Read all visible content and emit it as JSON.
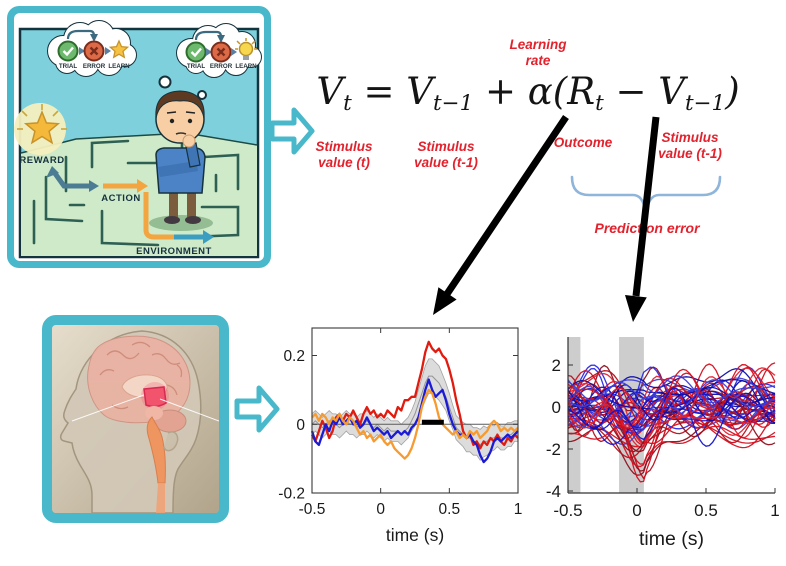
{
  "colors": {
    "background": "#ffffff",
    "cyan": "#49b8cb",
    "annotation_red": "#e2232e",
    "equation_ink": "#141414",
    "brace_blue": "#8fb5da",
    "arrow_black": "#000000"
  },
  "maze_panel": {
    "thought_labels": [
      "TRIAL",
      "ERROR",
      "LEARN"
    ],
    "reward_label": "REWARD",
    "action_label": "ACTION",
    "environment_label": "ENVIRONMENT"
  },
  "equation": {
    "plain": "Vt = Vt−1 + α(Rt − Vt−1)",
    "tokens": [
      {
        "t": "V"
      },
      {
        "t": "t",
        "sub": true
      },
      {
        "t": " = "
      },
      {
        "t": "V"
      },
      {
        "t": "t−1",
        "sub": true
      },
      {
        "t": " + "
      },
      {
        "t": "α"
      },
      {
        "t": "("
      },
      {
        "t": "R"
      },
      {
        "t": "t",
        "sub": true
      },
      {
        "t": " − "
      },
      {
        "t": "V"
      },
      {
        "t": "t−1",
        "sub": true
      },
      {
        "t": ")"
      }
    ]
  },
  "annotations": {
    "learning_rate": "Learning\nrate",
    "stimulus_value_t": "Stimulus\nvalue (t)",
    "stimulus_value_t1": "Stimulus\nvalue (t-1)",
    "outcome": "Outcome",
    "stimulus_value_t1_right": "Stimulus\nvalue (t-1)",
    "prediction_error": "Prediction error"
  },
  "chart_data": [
    {
      "id": "erp",
      "type": "line",
      "xlabel": "time (s)",
      "xticks": [
        -0.5,
        0,
        0.5,
        1
      ],
      "xtick_labels": [
        "-0.5",
        "0",
        "0.5",
        "1"
      ],
      "yticks": [
        0.2,
        0,
        -0.2
      ],
      "ytick_labels": [
        "0.2",
        "0",
        "-0.2"
      ],
      "xlim": [
        -0.5,
        1
      ],
      "ylim": [
        -0.2,
        0.28
      ],
      "grid": false,
      "x_start": -0.5,
      "x_step": 0.025,
      "series": [
        {
          "name": "red",
          "color": "#e01b10",
          "values": [
            -0.03,
            -0.05,
            -0.02,
            0.01,
            -0.01,
            -0.04,
            -0.02,
            0.02,
            0.03,
            0.01,
            0.03,
            0.02,
            0.04,
            0.02,
            0,
            0.03,
            0.05,
            0.03,
            0.04,
            0.02,
            0.03,
            0.02,
            0.04,
            0.03,
            0.02,
            0.05,
            0.04,
            0.07,
            0.07,
            0.08,
            0.08,
            0.12,
            0.16,
            0.21,
            0.24,
            0.22,
            0.21,
            0.22,
            0.2,
            0.19,
            0.16,
            0.12,
            0.07,
            0.03,
            -0.02,
            -0.04,
            -0.03,
            -0.06,
            -0.05,
            -0.07,
            -0.05,
            -0.06,
            -0.04,
            -0.05,
            -0.03,
            -0.05,
            -0.06,
            -0.04,
            -0.05,
            -0.03,
            -0.04
          ]
        },
        {
          "name": "blue",
          "color": "#1b1bd6",
          "values": [
            -0.02,
            -0.05,
            -0.06,
            -0.03,
            0,
            -0.02,
            0.01,
            0,
            0.02,
            0,
            0.01,
            0.02,
            0,
            0.01,
            -0.01,
            0,
            0.02,
            0,
            -0.02,
            -0.01,
            -0.02,
            -0.03,
            -0.02,
            -0.04,
            -0.03,
            -0.02,
            -0.03,
            -0.02,
            -0.03,
            -0.01,
            0,
            0.02,
            0.06,
            0.1,
            0.13,
            0.1,
            0.08,
            0.09,
            0.1,
            0.07,
            0.03,
            0,
            -0.02,
            -0.03,
            -0.03,
            -0.04,
            -0.03,
            -0.05,
            -0.06,
            -0.09,
            -0.11,
            -0.1,
            -0.08,
            -0.05,
            -0.04,
            -0.05,
            -0.04,
            -0.03,
            -0.04,
            -0.03,
            -0.02
          ]
        },
        {
          "name": "orange",
          "color": "#f79b30",
          "values": [
            0.02,
            0.03,
            0.01,
            0.03,
            0.02,
            0,
            0.02,
            0.01,
            0.03,
            0.01,
            0,
            0.02,
            0.01,
            -0.01,
            -0.03,
            -0.02,
            -0.04,
            -0.03,
            -0.05,
            -0.04,
            -0.03,
            -0.05,
            -0.06,
            -0.05,
            -0.07,
            -0.08,
            -0.09,
            -0.1,
            -0.09,
            -0.07,
            -0.04,
            0,
            0.05,
            0.08,
            0.1,
            0.09,
            0.06,
            0.02,
            0,
            -0.01,
            -0.02,
            -0.03,
            -0.02,
            -0.04,
            -0.03,
            -0.04,
            -0.02,
            -0.03,
            -0.02,
            -0.04,
            -0.03,
            -0.02,
            0,
            0.01,
            0,
            -0.02,
            -0.01,
            -0.02,
            -0.01,
            -0.02,
            -0.01
          ]
        }
      ],
      "band": {
        "fill": "#d8d8d8",
        "edge": "#a2a2a2",
        "center_color": "#949494",
        "center": [
          0,
          0.01,
          0,
          -0.01,
          0,
          0.01,
          0,
          0,
          -0.01,
          0,
          0.01,
          0,
          0,
          -0.01,
          0,
          0,
          0.01,
          0,
          -0.01,
          0,
          -0.01,
          -0.02,
          -0.01,
          -0.02,
          -0.02,
          -0.02,
          -0.03,
          -0.02,
          -0.01,
          0.01,
          0.03,
          0.06,
          0.09,
          0.12,
          0.14,
          0.14,
          0.13,
          0.12,
          0.1,
          0.08,
          0.05,
          0.02,
          -0.01,
          -0.02,
          -0.03,
          -0.04,
          -0.04,
          -0.05,
          -0.05,
          -0.06,
          -0.05,
          -0.05,
          -0.04,
          -0.04,
          -0.03,
          -0.04,
          -0.04,
          -0.03,
          -0.03,
          -0.02,
          -0.02
        ],
        "halfwidth": [
          0.03,
          0.03,
          0.03,
          0.03,
          0.03,
          0.03,
          0.03,
          0.03,
          0.03,
          0.03,
          0.03,
          0.03,
          0.03,
          0.03,
          0.03,
          0.03,
          0.03,
          0.03,
          0.03,
          0.03,
          0.03,
          0.03,
          0.03,
          0.03,
          0.03,
          0.03,
          0.03,
          0.03,
          0.03,
          0.03,
          0.035,
          0.04,
          0.045,
          0.05,
          0.05,
          0.05,
          0.05,
          0.05,
          0.045,
          0.04,
          0.04,
          0.035,
          0.035,
          0.035,
          0.035,
          0.04,
          0.04,
          0.04,
          0.04,
          0.045,
          0.045,
          0.04,
          0.04,
          0.035,
          0.035,
          0.035,
          0.035,
          0.035,
          0.035,
          0.03,
          0.03
        ]
      },
      "zero_line_y": 0,
      "sig_bar": {
        "from": 0.3,
        "to": 0.46,
        "y": 0.006,
        "color": "#000000"
      }
    },
    {
      "id": "trials",
      "type": "line",
      "xlabel": "time (s)",
      "xticks": [
        -0.5,
        0,
        0.5,
        1
      ],
      "xtick_labels": [
        "-0.5",
        "0",
        "0.5",
        "1"
      ],
      "yticks": [
        2,
        0,
        -2,
        -4
      ],
      "ytick_labels": [
        "2",
        "0",
        "-2",
        "-4"
      ],
      "xlim": [
        -0.5,
        1
      ],
      "ylim": [
        -4,
        3.4
      ],
      "grid": false,
      "shaded_spans": [
        [
          -0.5,
          -0.41
        ],
        [
          -0.13,
          0.05
        ]
      ],
      "band_fill": "#cdcdcd",
      "noise": {
        "seed": 13,
        "points_per_trace": 64
      },
      "groups": [
        {
          "name": "red",
          "shades": [
            "#d40f1f",
            "#b5101c",
            "#e32230",
            "#8c1220"
          ],
          "count": 26,
          "mean": -0.25,
          "spread": 2.0,
          "amp": 1.05,
          "dip": 2.8
        },
        {
          "name": "blue",
          "shades": [
            "#1414cc",
            "#2a2ae6",
            "#0d0da8",
            "#3d3dd8"
          ],
          "count": 26,
          "mean": 0.15,
          "spread": 1.7,
          "amp": 0.9,
          "dip": 0.7
        }
      ]
    }
  ]
}
